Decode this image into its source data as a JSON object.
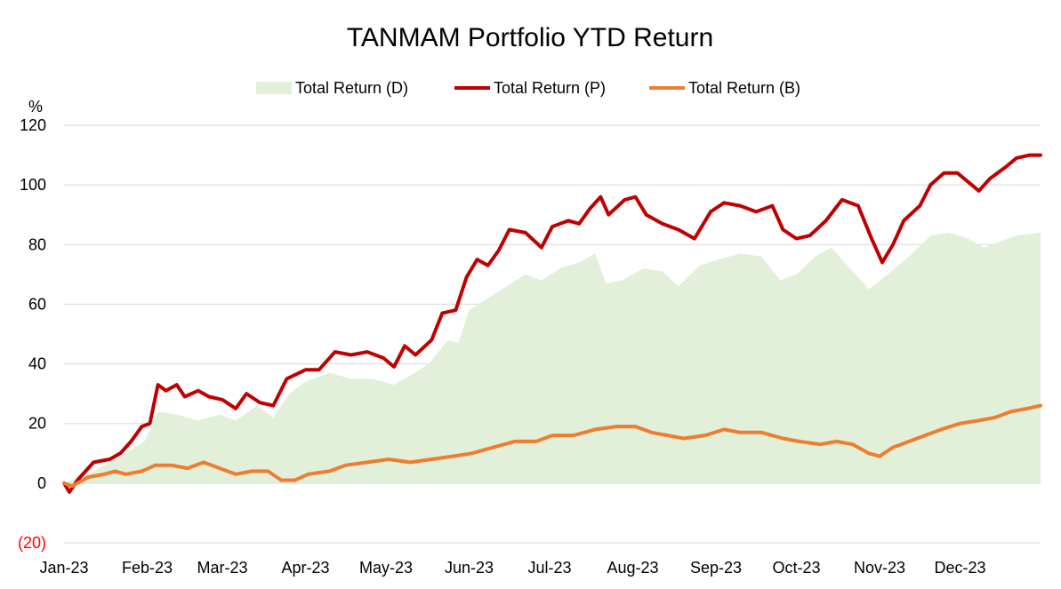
{
  "chart_data": {
    "type": "line",
    "title": "TANMAM Portfolio YTD Return",
    "y_unit_label": "%",
    "ylim": [
      -20,
      120
    ],
    "y_ticks": [
      {
        "value": 120,
        "label": "120"
      },
      {
        "value": 100,
        "label": "100"
      },
      {
        "value": 80,
        "label": "80"
      },
      {
        "value": 60,
        "label": "60"
      },
      {
        "value": 40,
        "label": "40"
      },
      {
        "value": 20,
        "label": "20"
      },
      {
        "value": 0,
        "label": "0"
      },
      {
        "value": -20,
        "label": "(20)"
      }
    ],
    "x_range": [
      "2023-01-01",
      "2023-12-31"
    ],
    "x_ticks": [
      {
        "date": "2023-01-01",
        "label": "Jan-23"
      },
      {
        "date": "2023-02-01",
        "label": "Feb-23"
      },
      {
        "date": "2023-03-01",
        "label": "Mar-23"
      },
      {
        "date": "2023-04-01",
        "label": "Apr-23"
      },
      {
        "date": "2023-05-01",
        "label": "May-23"
      },
      {
        "date": "2023-06-01",
        "label": "Jun-23"
      },
      {
        "date": "2023-07-01",
        "label": "Jul-23"
      },
      {
        "date": "2023-08-01",
        "label": "Aug-23"
      },
      {
        "date": "2023-09-01",
        "label": "Sep-23"
      },
      {
        "date": "2023-10-01",
        "label": "Oct-23"
      },
      {
        "date": "2023-11-01",
        "label": "Nov-23"
      },
      {
        "date": "2023-12-01",
        "label": "Dec-23"
      }
    ],
    "grid": true,
    "legend_position": "top-center",
    "series": [
      {
        "name": "Total Return (D)",
        "style": "area",
        "color": "#e2efd9",
        "points": [
          [
            "2023-01-01",
            0
          ],
          [
            "2023-01-10",
            3
          ],
          [
            "2023-01-20",
            8
          ],
          [
            "2023-01-31",
            14
          ],
          [
            "2023-02-05",
            24
          ],
          [
            "2023-02-12",
            23
          ],
          [
            "2023-02-20",
            21
          ],
          [
            "2023-02-28",
            23
          ],
          [
            "2023-03-06",
            21
          ],
          [
            "2023-03-14",
            26
          ],
          [
            "2023-03-20",
            22
          ],
          [
            "2023-03-26",
            30
          ],
          [
            "2023-04-01",
            34
          ],
          [
            "2023-04-10",
            37
          ],
          [
            "2023-04-18",
            35
          ],
          [
            "2023-04-26",
            35
          ],
          [
            "2023-05-04",
            33
          ],
          [
            "2023-05-10",
            36
          ],
          [
            "2023-05-17",
            40
          ],
          [
            "2023-05-24",
            48
          ],
          [
            "2023-05-28",
            47
          ],
          [
            "2023-06-01",
            58
          ],
          [
            "2023-06-08",
            62
          ],
          [
            "2023-06-15",
            66
          ],
          [
            "2023-06-22",
            70
          ],
          [
            "2023-06-28",
            68
          ],
          [
            "2023-07-05",
            72
          ],
          [
            "2023-07-12",
            74
          ],
          [
            "2023-07-18",
            77
          ],
          [
            "2023-07-22",
            67
          ],
          [
            "2023-07-28",
            68
          ],
          [
            "2023-08-05",
            72
          ],
          [
            "2023-08-12",
            71
          ],
          [
            "2023-08-18",
            66
          ],
          [
            "2023-08-26",
            73
          ],
          [
            "2023-09-02",
            75
          ],
          [
            "2023-09-10",
            77
          ],
          [
            "2023-09-18",
            76
          ],
          [
            "2023-09-25",
            68
          ],
          [
            "2023-10-01",
            70
          ],
          [
            "2023-10-08",
            76
          ],
          [
            "2023-10-14",
            79
          ],
          [
            "2023-10-20",
            73
          ],
          [
            "2023-10-28",
            65
          ],
          [
            "2023-11-04",
            70
          ],
          [
            "2023-11-12",
            76
          ],
          [
            "2023-11-20",
            83
          ],
          [
            "2023-11-27",
            84
          ],
          [
            "2023-12-04",
            82
          ],
          [
            "2023-12-10",
            79
          ],
          [
            "2023-12-16",
            81
          ],
          [
            "2023-12-22",
            83
          ],
          [
            "2023-12-31",
            84
          ]
        ]
      },
      {
        "name": "Total Return (P)",
        "style": "line",
        "color": "#c00000",
        "points": [
          [
            "2023-01-01",
            0
          ],
          [
            "2023-01-03",
            -3
          ],
          [
            "2023-01-06",
            1
          ],
          [
            "2023-01-12",
            7
          ],
          [
            "2023-01-18",
            8
          ],
          [
            "2023-01-22",
            10
          ],
          [
            "2023-01-26",
            14
          ],
          [
            "2023-01-30",
            19
          ],
          [
            "2023-02-02",
            20
          ],
          [
            "2023-02-05",
            33
          ],
          [
            "2023-02-08",
            31
          ],
          [
            "2023-02-12",
            33
          ],
          [
            "2023-02-15",
            29
          ],
          [
            "2023-02-20",
            31
          ],
          [
            "2023-02-24",
            29
          ],
          [
            "2023-03-01",
            28
          ],
          [
            "2023-03-06",
            25
          ],
          [
            "2023-03-10",
            30
          ],
          [
            "2023-03-15",
            27
          ],
          [
            "2023-03-20",
            26
          ],
          [
            "2023-03-25",
            35
          ],
          [
            "2023-04-01",
            38
          ],
          [
            "2023-04-06",
            38
          ],
          [
            "2023-04-12",
            44
          ],
          [
            "2023-04-18",
            43
          ],
          [
            "2023-04-24",
            44
          ],
          [
            "2023-04-30",
            42
          ],
          [
            "2023-05-04",
            39
          ],
          [
            "2023-05-08",
            46
          ],
          [
            "2023-05-12",
            43
          ],
          [
            "2023-05-18",
            48
          ],
          [
            "2023-05-22",
            57
          ],
          [
            "2023-05-27",
            58
          ],
          [
            "2023-05-31",
            69
          ],
          [
            "2023-06-04",
            75
          ],
          [
            "2023-06-08",
            73
          ],
          [
            "2023-06-12",
            78
          ],
          [
            "2023-06-16",
            85
          ],
          [
            "2023-06-22",
            84
          ],
          [
            "2023-06-28",
            79
          ],
          [
            "2023-07-02",
            86
          ],
          [
            "2023-07-08",
            88
          ],
          [
            "2023-07-12",
            87
          ],
          [
            "2023-07-16",
            92
          ],
          [
            "2023-07-20",
            96
          ],
          [
            "2023-07-23",
            90
          ],
          [
            "2023-07-29",
            95
          ],
          [
            "2023-08-02",
            96
          ],
          [
            "2023-08-06",
            90
          ],
          [
            "2023-08-12",
            87
          ],
          [
            "2023-08-18",
            85
          ],
          [
            "2023-08-24",
            82
          ],
          [
            "2023-08-30",
            91
          ],
          [
            "2023-09-04",
            94
          ],
          [
            "2023-09-10",
            93
          ],
          [
            "2023-09-16",
            91
          ],
          [
            "2023-09-22",
            93
          ],
          [
            "2023-09-26",
            85
          ],
          [
            "2023-10-01",
            82
          ],
          [
            "2023-10-06",
            83
          ],
          [
            "2023-10-12",
            88
          ],
          [
            "2023-10-18",
            95
          ],
          [
            "2023-10-24",
            93
          ],
          [
            "2023-10-29",
            82
          ],
          [
            "2023-11-02",
            74
          ],
          [
            "2023-11-06",
            80
          ],
          [
            "2023-11-10",
            88
          ],
          [
            "2023-11-16",
            93
          ],
          [
            "2023-11-20",
            100
          ],
          [
            "2023-11-25",
            104
          ],
          [
            "2023-11-30",
            104
          ],
          [
            "2023-12-04",
            101
          ],
          [
            "2023-12-08",
            98
          ],
          [
            "2023-12-12",
            102
          ],
          [
            "2023-12-18",
            106
          ],
          [
            "2023-12-22",
            109
          ],
          [
            "2023-12-27",
            110
          ],
          [
            "2023-12-31",
            110
          ]
        ]
      },
      {
        "name": "Total Return (B)",
        "style": "line",
        "color": "#ed7d31",
        "points": [
          [
            "2023-01-01",
            0
          ],
          [
            "2023-01-04",
            -1
          ],
          [
            "2023-01-10",
            2
          ],
          [
            "2023-01-16",
            3
          ],
          [
            "2023-01-20",
            4
          ],
          [
            "2023-01-24",
            3
          ],
          [
            "2023-01-30",
            4
          ],
          [
            "2023-02-04",
            6
          ],
          [
            "2023-02-10",
            6
          ],
          [
            "2023-02-16",
            5
          ],
          [
            "2023-02-22",
            7
          ],
          [
            "2023-02-28",
            5
          ],
          [
            "2023-03-06",
            3
          ],
          [
            "2023-03-12",
            4
          ],
          [
            "2023-03-18",
            4
          ],
          [
            "2023-03-23",
            1
          ],
          [
            "2023-03-28",
            1
          ],
          [
            "2023-04-02",
            3
          ],
          [
            "2023-04-10",
            4
          ],
          [
            "2023-04-16",
            6
          ],
          [
            "2023-04-24",
            7
          ],
          [
            "2023-05-02",
            8
          ],
          [
            "2023-05-10",
            7
          ],
          [
            "2023-05-18",
            8
          ],
          [
            "2023-05-26",
            9
          ],
          [
            "2023-06-02",
            10
          ],
          [
            "2023-06-10",
            12
          ],
          [
            "2023-06-18",
            14
          ],
          [
            "2023-06-26",
            14
          ],
          [
            "2023-07-02",
            16
          ],
          [
            "2023-07-10",
            16
          ],
          [
            "2023-07-18",
            18
          ],
          [
            "2023-07-26",
            19
          ],
          [
            "2023-08-02",
            19
          ],
          [
            "2023-08-08",
            17
          ],
          [
            "2023-08-14",
            16
          ],
          [
            "2023-08-20",
            15
          ],
          [
            "2023-08-28",
            16
          ],
          [
            "2023-09-04",
            18
          ],
          [
            "2023-09-10",
            17
          ],
          [
            "2023-09-18",
            17
          ],
          [
            "2023-09-26",
            15
          ],
          [
            "2023-10-02",
            14
          ],
          [
            "2023-10-10",
            13
          ],
          [
            "2023-10-16",
            14
          ],
          [
            "2023-10-22",
            13
          ],
          [
            "2023-10-28",
            10
          ],
          [
            "2023-11-01",
            9
          ],
          [
            "2023-11-06",
            12
          ],
          [
            "2023-11-12",
            14
          ],
          [
            "2023-11-18",
            16
          ],
          [
            "2023-11-24",
            18
          ],
          [
            "2023-12-01",
            20
          ],
          [
            "2023-12-08",
            21
          ],
          [
            "2023-12-14",
            22
          ],
          [
            "2023-12-20",
            24
          ],
          [
            "2023-12-26",
            25
          ],
          [
            "2023-12-31",
            26
          ]
        ]
      }
    ]
  }
}
